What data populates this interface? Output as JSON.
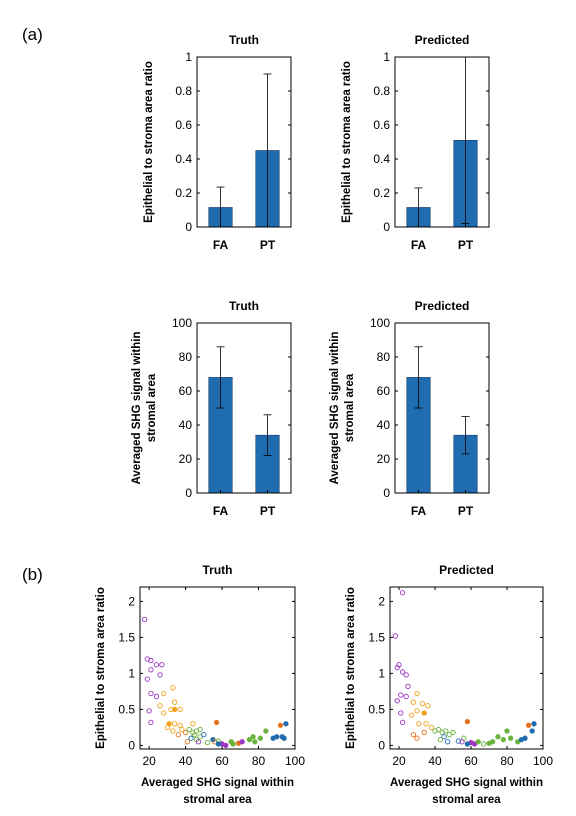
{
  "panel_labels": {
    "a": "(a)",
    "b": "(b)"
  },
  "colors": {
    "bar": "#1f6db0",
    "purple": "#9b36c4",
    "gold": "#f0a11c",
    "green": "#6ab33c",
    "blue": "#1f6db0",
    "orange": "#e8731f"
  },
  "chart_data": [
    {
      "id": "a-truth-ratio",
      "type": "bar",
      "title": "Truth",
      "ylabel": "Epithelial to stroma area ratio",
      "categories": [
        "FA",
        "PT"
      ],
      "values": [
        0.115,
        0.45
      ],
      "errors": [
        0.12,
        0.45
      ],
      "ylim": [
        0,
        1
      ],
      "yticks": [
        0,
        0.2,
        0.4,
        0.6,
        0.8,
        1
      ],
      "ytick_labels": [
        "0",
        "0.2",
        "0.4",
        "0.6",
        "0.8",
        "1"
      ]
    },
    {
      "id": "a-pred-ratio",
      "type": "bar",
      "title": "Predicted",
      "ylabel": "Epithelial to stroma area ratio",
      "categories": [
        "FA",
        "PT"
      ],
      "values": [
        0.115,
        0.51
      ],
      "errors": [
        0.115,
        0.49
      ],
      "ylim": [
        0,
        1
      ],
      "yticks": [
        0,
        0.2,
        0.4,
        0.6,
        0.8,
        1
      ],
      "ytick_labels": [
        "0",
        "0.2",
        "0.4",
        "0.6",
        "0.8",
        "1"
      ]
    },
    {
      "id": "a-truth-shg",
      "type": "bar",
      "title": "Truth",
      "ylabel_lines": [
        "Averaged SHG signal within",
        "stromal area"
      ],
      "categories": [
        "FA",
        "PT"
      ],
      "values": [
        68,
        34
      ],
      "errors": [
        18,
        12
      ],
      "ylim": [
        0,
        100
      ],
      "yticks": [
        0,
        20,
        40,
        60,
        80,
        100
      ],
      "ytick_labels": [
        "0",
        "20",
        "40",
        "60",
        "80",
        "100"
      ]
    },
    {
      "id": "a-pred-shg",
      "type": "bar",
      "title": "Predicted",
      "ylabel_lines": [
        "Averaged SHG signal within",
        "stromal area"
      ],
      "categories": [
        "FA",
        "PT"
      ],
      "values": [
        68,
        34
      ],
      "errors": [
        18,
        11
      ],
      "ylim": [
        0,
        100
      ],
      "yticks": [
        0,
        20,
        40,
        60,
        80,
        100
      ],
      "ytick_labels": [
        "0",
        "20",
        "40",
        "60",
        "80",
        "100"
      ]
    },
    {
      "id": "b-truth",
      "type": "scatter",
      "title": "Truth",
      "ylabel": "Epithelial to stroma area ratio",
      "xlabel_lines": [
        "Averaged SHG signal within",
        "stromal area"
      ],
      "xlim": [
        15,
        100
      ],
      "ylim": [
        -0.05,
        2.2
      ],
      "xticks": [
        20,
        40,
        60,
        80,
        100
      ],
      "xtick_labels": [
        "20",
        "40",
        "60",
        "80",
        "100"
      ],
      "yticks": [
        0,
        0.5,
        1,
        1.5,
        2
      ],
      "ytick_labels": [
        "0",
        "0.5",
        "1",
        "1.5",
        "2"
      ],
      "points": [
        {
          "x": 17.5,
          "y": 1.75,
          "c": "purple",
          "f": false
        },
        {
          "x": 19,
          "y": 1.2,
          "c": "purple",
          "f": false
        },
        {
          "x": 21,
          "y": 1.18,
          "c": "purple",
          "f": false
        },
        {
          "x": 24,
          "y": 1.12,
          "c": "purple",
          "f": false
        },
        {
          "x": 27,
          "y": 1.12,
          "c": "purple",
          "f": false
        },
        {
          "x": 21,
          "y": 1.05,
          "c": "purple",
          "f": false
        },
        {
          "x": 26,
          "y": 0.98,
          "c": "purple",
          "f": false
        },
        {
          "x": 19,
          "y": 0.92,
          "c": "purple",
          "f": false
        },
        {
          "x": 21,
          "y": 0.72,
          "c": "purple",
          "f": false
        },
        {
          "x": 24,
          "y": 0.68,
          "c": "purple",
          "f": false
        },
        {
          "x": 20,
          "y": 0.48,
          "c": "purple",
          "f": false
        },
        {
          "x": 21,
          "y": 0.32,
          "c": "purple",
          "f": false
        },
        {
          "x": 33,
          "y": 0.8,
          "c": "gold",
          "f": false
        },
        {
          "x": 28,
          "y": 0.72,
          "c": "gold",
          "f": false
        },
        {
          "x": 34,
          "y": 0.6,
          "c": "gold",
          "f": false
        },
        {
          "x": 26,
          "y": 0.55,
          "c": "gold",
          "f": false
        },
        {
          "x": 32,
          "y": 0.5,
          "c": "gold",
          "f": false
        },
        {
          "x": 28,
          "y": 0.45,
          "c": "gold",
          "f": false
        },
        {
          "x": 34,
          "y": 0.5,
          "c": "gold",
          "f": true
        },
        {
          "x": 37,
          "y": 0.5,
          "c": "gold",
          "f": false
        },
        {
          "x": 31,
          "y": 0.3,
          "c": "gold",
          "f": true
        },
        {
          "x": 34,
          "y": 0.3,
          "c": "gold",
          "f": false
        },
        {
          "x": 37,
          "y": 0.28,
          "c": "gold",
          "f": false
        },
        {
          "x": 30,
          "y": 0.25,
          "c": "gold",
          "f": false
        },
        {
          "x": 33,
          "y": 0.2,
          "c": "gold",
          "f": false
        },
        {
          "x": 38,
          "y": 0.22,
          "c": "gold",
          "f": false
        },
        {
          "x": 44,
          "y": 0.3,
          "c": "gold",
          "f": false
        },
        {
          "x": 36,
          "y": 0.15,
          "c": "orange",
          "f": false
        },
        {
          "x": 40,
          "y": 0.18,
          "c": "orange",
          "f": false
        },
        {
          "x": 42,
          "y": 0.22,
          "c": "green",
          "f": false
        },
        {
          "x": 44,
          "y": 0.18,
          "c": "green",
          "f": false
        },
        {
          "x": 46,
          "y": 0.2,
          "c": "green",
          "f": false
        },
        {
          "x": 48,
          "y": 0.22,
          "c": "green",
          "f": false
        },
        {
          "x": 45,
          "y": 0.15,
          "c": "green",
          "f": false
        },
        {
          "x": 48,
          "y": 0.12,
          "c": "green",
          "f": false
        },
        {
          "x": 50,
          "y": 0.15,
          "c": "blue",
          "f": false
        },
        {
          "x": 43,
          "y": 0.1,
          "c": "blue",
          "f": false
        },
        {
          "x": 46,
          "y": 0.08,
          "c": "green",
          "f": false
        },
        {
          "x": 41,
          "y": 0.05,
          "c": "orange",
          "f": false
        },
        {
          "x": 47,
          "y": 0.05,
          "c": "purple",
          "f": false
        },
        {
          "x": 52,
          "y": 0.04,
          "c": "green",
          "f": false
        },
        {
          "x": 55,
          "y": 0.08,
          "c": "blue",
          "f": true
        },
        {
          "x": 56,
          "y": 0.05,
          "c": "orange",
          "f": false
        },
        {
          "x": 58,
          "y": 0.06,
          "c": "green",
          "f": false
        },
        {
          "x": 57,
          "y": 0.32,
          "c": "orange",
          "f": true
        },
        {
          "x": 60,
          "y": 0.02,
          "c": "purple",
          "f": true
        },
        {
          "x": 62,
          "y": 0.0,
          "c": "purple",
          "f": true
        },
        {
          "x": 58,
          "y": 0.02,
          "c": "blue",
          "f": true
        },
        {
          "x": 65,
          "y": 0.05,
          "c": "green",
          "f": true
        },
        {
          "x": 66,
          "y": 0.02,
          "c": "green",
          "f": true
        },
        {
          "x": 69,
          "y": 0.03,
          "c": "orange",
          "f": true
        },
        {
          "x": 71,
          "y": 0.05,
          "c": "purple",
          "f": true
        },
        {
          "x": 75,
          "y": 0.08,
          "c": "green",
          "f": true
        },
        {
          "x": 77,
          "y": 0.12,
          "c": "green",
          "f": true
        },
        {
          "x": 78,
          "y": 0.05,
          "c": "green",
          "f": true
        },
        {
          "x": 81,
          "y": 0.1,
          "c": "green",
          "f": true
        },
        {
          "x": 84,
          "y": 0.2,
          "c": "green",
          "f": true
        },
        {
          "x": 88,
          "y": 0.1,
          "c": "blue",
          "f": true
        },
        {
          "x": 90,
          "y": 0.12,
          "c": "blue",
          "f": true
        },
        {
          "x": 92,
          "y": 0.28,
          "c": "orange",
          "f": true
        },
        {
          "x": 93,
          "y": 0.12,
          "c": "blue",
          "f": true
        },
        {
          "x": 95,
          "y": 0.3,
          "c": "blue",
          "f": true
        },
        {
          "x": 94,
          "y": 0.1,
          "c": "blue",
          "f": true
        }
      ]
    },
    {
      "id": "b-pred",
      "type": "scatter",
      "title": "Predicted",
      "ylabel": "Epithelial to stroma area ratio",
      "xlabel_lines": [
        "Averaged SHG signal within",
        "stromal area"
      ],
      "xlim": [
        15,
        100
      ],
      "ylim": [
        -0.05,
        2.2
      ],
      "xticks": [
        20,
        40,
        60,
        80,
        100
      ],
      "xtick_labels": [
        "20",
        "40",
        "60",
        "80",
        "100"
      ],
      "yticks": [
        0,
        0.5,
        1,
        1.5,
        2
      ],
      "ytick_labels": [
        "0",
        "0.5",
        "1",
        "1.5",
        "2"
      ],
      "points": [
        {
          "x": 22,
          "y": 2.12,
          "c": "purple",
          "f": false
        },
        {
          "x": 18,
          "y": 1.52,
          "c": "purple",
          "f": false
        },
        {
          "x": 20,
          "y": 1.12,
          "c": "purple",
          "f": false
        },
        {
          "x": 19,
          "y": 1.08,
          "c": "purple",
          "f": false
        },
        {
          "x": 22,
          "y": 1.02,
          "c": "purple",
          "f": false
        },
        {
          "x": 24,
          "y": 0.98,
          "c": "purple",
          "f": false
        },
        {
          "x": 25,
          "y": 0.82,
          "c": "purple",
          "f": false
        },
        {
          "x": 21,
          "y": 0.7,
          "c": "purple",
          "f": false
        },
        {
          "x": 24,
          "y": 0.68,
          "c": "purple",
          "f": false
        },
        {
          "x": 19,
          "y": 0.62,
          "c": "purple",
          "f": false
        },
        {
          "x": 21,
          "y": 0.45,
          "c": "purple",
          "f": false
        },
        {
          "x": 22,
          "y": 0.32,
          "c": "purple",
          "f": false
        },
        {
          "x": 30,
          "y": 0.72,
          "c": "gold",
          "f": false
        },
        {
          "x": 28,
          "y": 0.6,
          "c": "gold",
          "f": false
        },
        {
          "x": 33,
          "y": 0.58,
          "c": "gold",
          "f": false
        },
        {
          "x": 36,
          "y": 0.55,
          "c": "gold",
          "f": false
        },
        {
          "x": 30,
          "y": 0.48,
          "c": "gold",
          "f": false
        },
        {
          "x": 34,
          "y": 0.45,
          "c": "gold",
          "f": true
        },
        {
          "x": 27,
          "y": 0.42,
          "c": "gold",
          "f": false
        },
        {
          "x": 31,
          "y": 0.3,
          "c": "gold",
          "f": false
        },
        {
          "x": 35,
          "y": 0.3,
          "c": "gold",
          "f": false
        },
        {
          "x": 38,
          "y": 0.25,
          "c": "gold",
          "f": false
        },
        {
          "x": 28,
          "y": 0.15,
          "c": "orange",
          "f": false
        },
        {
          "x": 30,
          "y": 0.1,
          "c": "orange",
          "f": false
        },
        {
          "x": 34,
          "y": 0.18,
          "c": "orange",
          "f": false
        },
        {
          "x": 40,
          "y": 0.2,
          "c": "green",
          "f": false
        },
        {
          "x": 42,
          "y": 0.22,
          "c": "green",
          "f": false
        },
        {
          "x": 44,
          "y": 0.18,
          "c": "green",
          "f": false
        },
        {
          "x": 46,
          "y": 0.2,
          "c": "green",
          "f": false
        },
        {
          "x": 45,
          "y": 0.12,
          "c": "blue",
          "f": false
        },
        {
          "x": 48,
          "y": 0.15,
          "c": "green",
          "f": false
        },
        {
          "x": 50,
          "y": 0.18,
          "c": "green",
          "f": false
        },
        {
          "x": 43,
          "y": 0.08,
          "c": "green",
          "f": false
        },
        {
          "x": 47,
          "y": 0.05,
          "c": "blue",
          "f": false
        },
        {
          "x": 53,
          "y": 0.06,
          "c": "blue",
          "f": false
        },
        {
          "x": 56,
          "y": 0.1,
          "c": "green",
          "f": false
        },
        {
          "x": 58,
          "y": 0.33,
          "c": "orange",
          "f": true
        },
        {
          "x": 55,
          "y": 0.05,
          "c": "purple",
          "f": false
        },
        {
          "x": 60,
          "y": 0.04,
          "c": "purple",
          "f": true
        },
        {
          "x": 62,
          "y": 0.02,
          "c": "purple",
          "f": true
        },
        {
          "x": 58,
          "y": 0.02,
          "c": "blue",
          "f": true
        },
        {
          "x": 64,
          "y": 0.05,
          "c": "green",
          "f": true
        },
        {
          "x": 67,
          "y": 0.02,
          "c": "green",
          "f": false
        },
        {
          "x": 70,
          "y": 0.03,
          "c": "green",
          "f": true
        },
        {
          "x": 72,
          "y": 0.05,
          "c": "green",
          "f": true
        },
        {
          "x": 75,
          "y": 0.12,
          "c": "green",
          "f": true
        },
        {
          "x": 78,
          "y": 0.08,
          "c": "green",
          "f": true
        },
        {
          "x": 80,
          "y": 0.2,
          "c": "green",
          "f": true
        },
        {
          "x": 82,
          "y": 0.1,
          "c": "green",
          "f": true
        },
        {
          "x": 86,
          "y": 0.05,
          "c": "green",
          "f": true
        },
        {
          "x": 88,
          "y": 0.08,
          "c": "blue",
          "f": true
        },
        {
          "x": 90,
          "y": 0.1,
          "c": "blue",
          "f": true
        },
        {
          "x": 92,
          "y": 0.28,
          "c": "orange",
          "f": true
        },
        {
          "x": 94,
          "y": 0.2,
          "c": "blue",
          "f": true
        },
        {
          "x": 95,
          "y": 0.3,
          "c": "blue",
          "f": true
        }
      ]
    }
  ]
}
